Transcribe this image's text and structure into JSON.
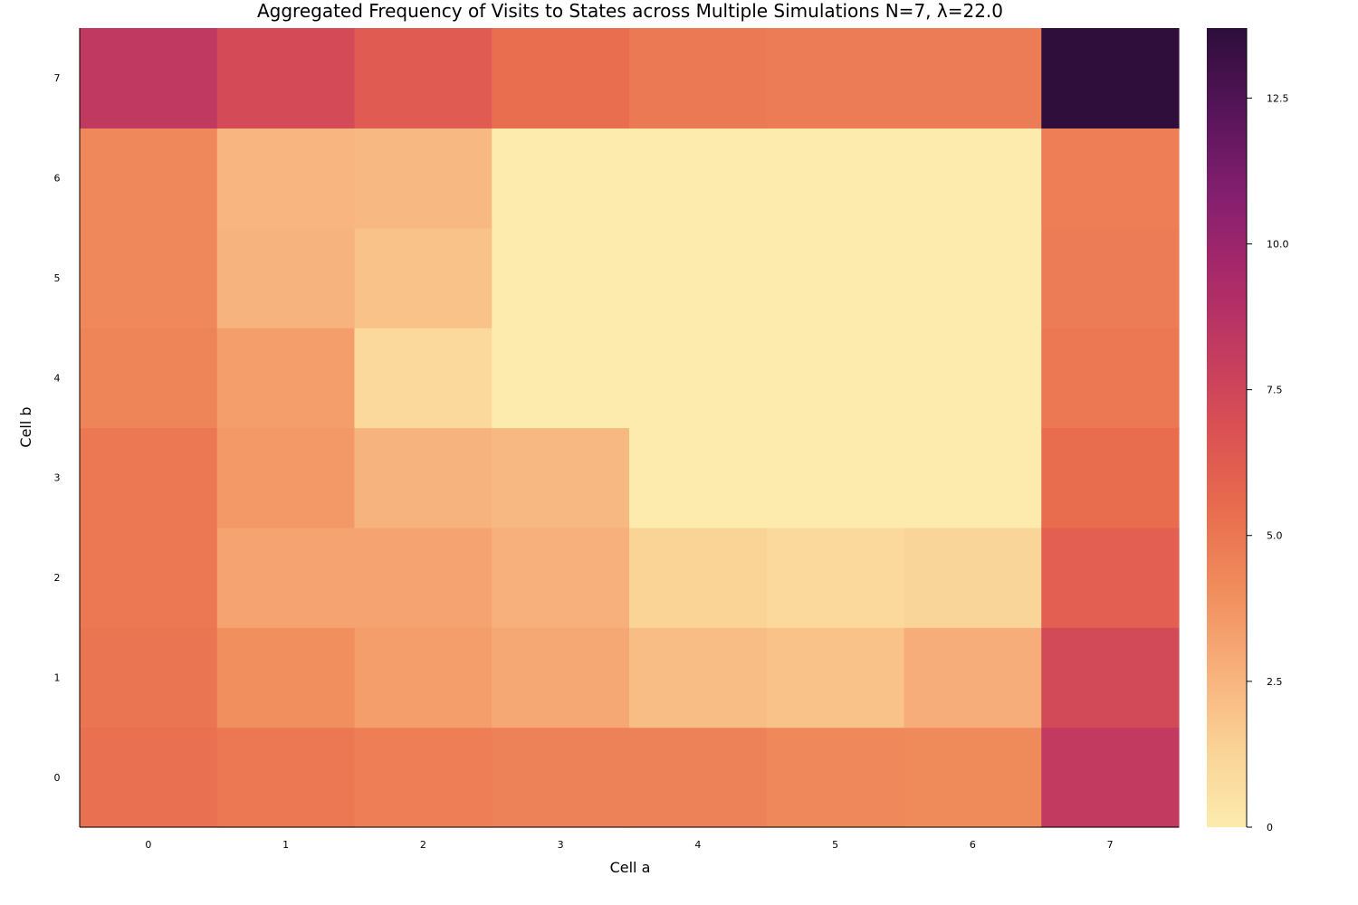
{
  "chart_data": {
    "type": "heatmap",
    "title": "Aggregated Frequency of Visits to States across Multiple Simulations N=7, λ=22.0",
    "xlabel": "Cell a",
    "ylabel": "Cell b",
    "x_categories": [
      "0",
      "1",
      "2",
      "3",
      "4",
      "5",
      "6",
      "7"
    ],
    "y_categories": [
      "0",
      "1",
      "2",
      "3",
      "4",
      "5",
      "6",
      "7"
    ],
    "rows_by_y": [
      [
        5.3,
        5.0,
        4.7,
        4.6,
        4.6,
        4.3,
        4.2,
        8.2
      ],
      [
        5.1,
        4.0,
        3.4,
        3.0,
        2.2,
        2.0,
        2.8,
        7.3
      ],
      [
        5.0,
        3.2,
        3.2,
        2.7,
        1.3,
        1.0,
        1.2,
        6.1
      ],
      [
        5.0,
        3.6,
        2.6,
        2.4,
        0.0,
        0.0,
        0.0,
        5.5
      ],
      [
        4.4,
        3.4,
        1.0,
        0.0,
        0.0,
        0.0,
        0.0,
        5.0
      ],
      [
        4.3,
        2.6,
        2.0,
        0.0,
        0.0,
        0.0,
        0.0,
        4.8
      ],
      [
        4.3,
        2.5,
        2.4,
        0.0,
        0.0,
        0.0,
        0.0,
        4.7
      ],
      [
        8.3,
        7.2,
        6.3,
        5.4,
        4.9,
        4.8,
        4.8,
        13.6
      ]
    ],
    "colorbar": {
      "colormap": "magma-reversed",
      "range": [
        0,
        13.7
      ],
      "ticks": [
        "0",
        "2.5",
        "5.0",
        "7.5",
        "10.0",
        "12.5"
      ],
      "tick_values": [
        0,
        2.5,
        5.0,
        7.5,
        10.0,
        12.5
      ]
    },
    "grid": false,
    "legend": "none"
  }
}
